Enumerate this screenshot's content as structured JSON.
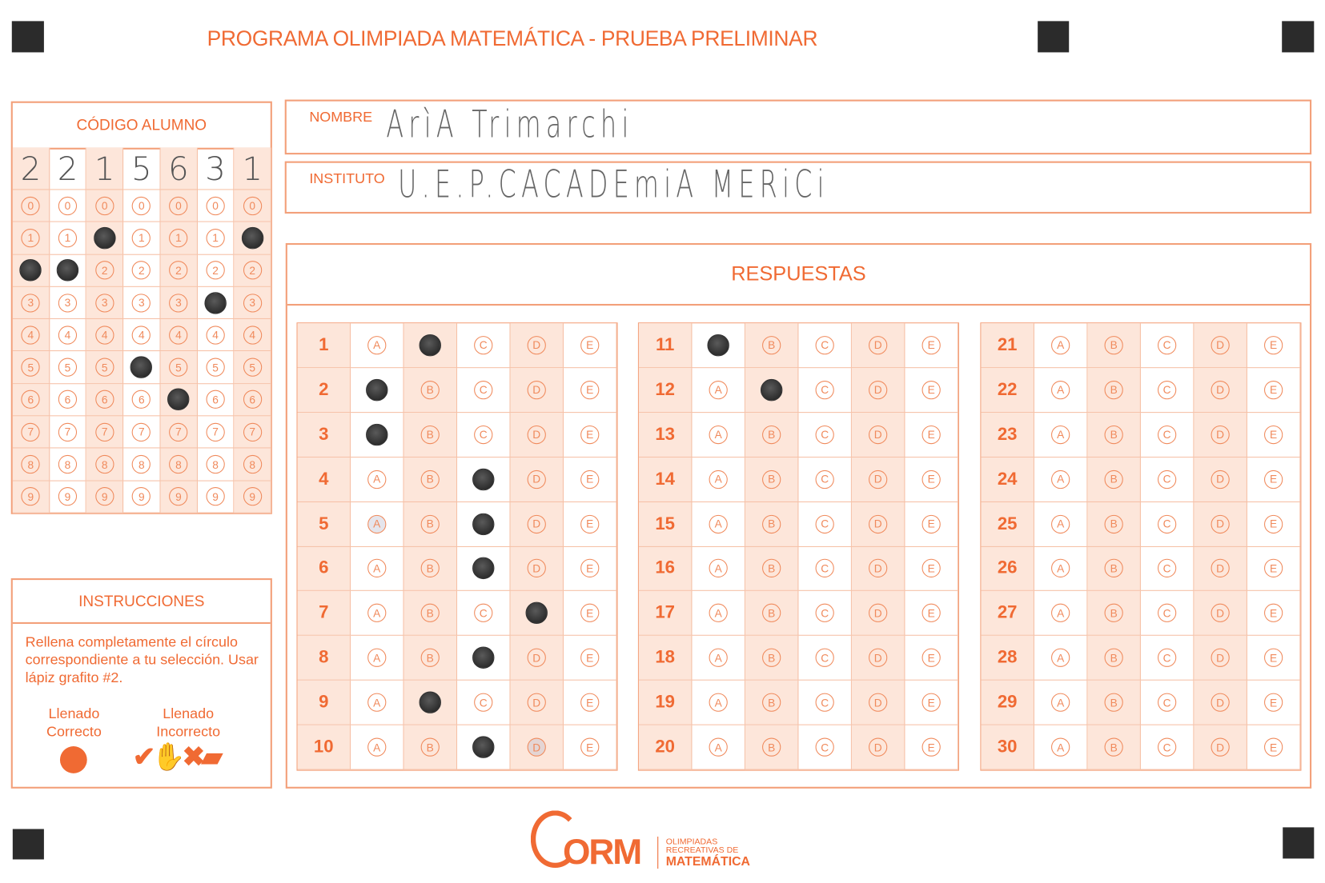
{
  "title": "PROGRAMA OLIMPIADA MATEMÁTICA  - PRUEBA PRELIMINAR",
  "student_code": {
    "label": "CÓDIGO ALUMNO",
    "digits": [
      "2",
      "2",
      "1",
      "5",
      "6",
      "3",
      "1"
    ],
    "bubble_values": [
      "0",
      "1",
      "2",
      "3",
      "4",
      "5",
      "6",
      "7",
      "8",
      "9"
    ]
  },
  "nombre": {
    "label": "NOMBRE",
    "value": "ArìA Trimarchi"
  },
  "instituto": {
    "label": "INSTITUTO",
    "value": "U.E.P.CACADEmiA MERiCi"
  },
  "respuestas": {
    "label": "RESPUESTAS",
    "options": [
      "A",
      "B",
      "C",
      "D",
      "E"
    ],
    "answers": [
      {
        "q": "1",
        "filled": "B"
      },
      {
        "q": "2",
        "filled": "A"
      },
      {
        "q": "3",
        "filled": "A"
      },
      {
        "q": "4",
        "filled": "C"
      },
      {
        "q": "5",
        "filled": "C",
        "faint": "A"
      },
      {
        "q": "6",
        "filled": "C"
      },
      {
        "q": "7",
        "filled": "D"
      },
      {
        "q": "8",
        "filled": "C"
      },
      {
        "q": "9",
        "filled": "B"
      },
      {
        "q": "10",
        "filled": "C",
        "faint": "D"
      },
      {
        "q": "11",
        "filled": "A"
      },
      {
        "q": "12",
        "filled": "B"
      },
      {
        "q": "13"
      },
      {
        "q": "14"
      },
      {
        "q": "15"
      },
      {
        "q": "16"
      },
      {
        "q": "17"
      },
      {
        "q": "18"
      },
      {
        "q": "19"
      },
      {
        "q": "20"
      },
      {
        "q": "21"
      },
      {
        "q": "22"
      },
      {
        "q": "23"
      },
      {
        "q": "24"
      },
      {
        "q": "25"
      },
      {
        "q": "26"
      },
      {
        "q": "27"
      },
      {
        "q": "28"
      },
      {
        "q": "29"
      },
      {
        "q": "30"
      }
    ]
  },
  "instrucciones": {
    "label": "INSTRUCCIONES",
    "text": "Rellena completamente el círculo correspondiente a tu selección. Usar lápiz grafito #2.",
    "correct_label_1": "Llenado",
    "correct_label_2": "Correcto",
    "incorrect_label_1": "Llenado",
    "incorrect_label_2": "Incorrecto"
  },
  "logo": {
    "acronym": "ORM",
    "line1": "OLIMPIADAS",
    "line2": "RECREATIVAS DE",
    "line3": "MATEMÁTICA"
  },
  "colors": {
    "accent": "#f06a33",
    "shade": "#fde6da",
    "pencil": "#333333"
  }
}
